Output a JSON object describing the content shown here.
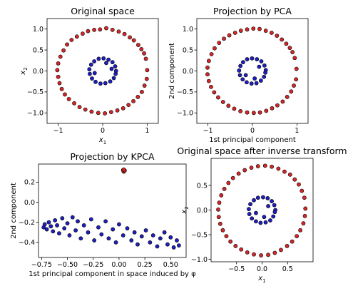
{
  "colors": {
    "outer": "#d62728",
    "inner": "#1f1fbf",
    "edge": "#000000"
  },
  "chart_data": [
    {
      "type": "scatter",
      "title": "Original space",
      "xlabel": "x1",
      "ylabel": "x2",
      "xlim": [
        -1.25,
        1.25
      ],
      "ylim": [
        -1.25,
        1.25
      ],
      "xticks": [
        -1,
        0,
        1
      ],
      "xtick_labels": [
        "−1",
        "0",
        "1"
      ],
      "yticks": [
        -1.0,
        -0.5,
        0.0,
        0.5,
        1.0
      ],
      "ytick_labels": [
        "−1.0",
        "−0.5",
        "0.0",
        "0.5",
        "1.0"
      ],
      "series": [
        {
          "color": "outer",
          "values": [
            [
              1.0,
              0.02
            ],
            [
              0.97,
              0.29
            ],
            [
              0.93,
              0.42
            ],
            [
              0.87,
              0.52
            ],
            [
              0.8,
              0.62
            ],
            [
              0.7,
              0.73
            ],
            [
              0.61,
              0.8
            ],
            [
              0.49,
              0.88
            ],
            [
              0.36,
              0.94
            ],
            [
              0.22,
              0.98
            ],
            [
              0.08,
              1.02
            ],
            [
              -0.06,
              0.99
            ],
            [
              -0.19,
              0.98
            ],
            [
              -0.33,
              0.95
            ],
            [
              -0.45,
              0.89
            ],
            [
              -0.58,
              0.82
            ],
            [
              -0.7,
              0.74
            ],
            [
              -0.8,
              0.63
            ],
            [
              -0.88,
              0.49
            ],
            [
              -0.95,
              0.34
            ],
            [
              -1.0,
              0.18
            ],
            [
              -1.02,
              0.02
            ],
            [
              -1.0,
              -0.14
            ],
            [
              -0.97,
              -0.29
            ],
            [
              -0.92,
              -0.43
            ],
            [
              -0.85,
              -0.56
            ],
            [
              -0.76,
              -0.67
            ],
            [
              -0.64,
              -0.77
            ],
            [
              -0.52,
              -0.86
            ],
            [
              -0.39,
              -0.92
            ],
            [
              -0.25,
              -0.97
            ],
            [
              -0.1,
              -1.0
            ],
            [
              0.05,
              -1.01
            ],
            [
              0.19,
              -0.98
            ],
            [
              0.33,
              -0.94
            ],
            [
              0.46,
              -0.89
            ],
            [
              0.58,
              -0.81
            ],
            [
              0.69,
              -0.72
            ],
            [
              0.79,
              -0.62
            ],
            [
              0.88,
              -0.5
            ],
            [
              0.94,
              -0.35
            ],
            [
              0.99,
              -0.19
            ]
          ]
        },
        {
          "color": "inner",
          "values": [
            [
              0.3,
              0.0
            ],
            [
              0.28,
              0.11
            ],
            [
              0.22,
              0.21
            ],
            [
              0.13,
              0.27
            ],
            [
              0.02,
              0.3
            ],
            [
              -0.09,
              0.29
            ],
            [
              -0.19,
              0.23
            ],
            [
              -0.26,
              0.15
            ],
            [
              -0.3,
              0.04
            ],
            [
              -0.29,
              -0.07
            ],
            [
              -0.24,
              -0.18
            ],
            [
              -0.16,
              -0.26
            ],
            [
              -0.05,
              -0.3
            ],
            [
              0.06,
              -0.29
            ],
            [
              0.17,
              -0.25
            ],
            [
              0.25,
              -0.17
            ],
            [
              0.29,
              -0.07
            ],
            [
              0.2,
              0.05
            ],
            [
              -0.18,
              -0.05
            ],
            [
              0.08,
              0.19
            ]
          ]
        }
      ]
    },
    {
      "type": "scatter",
      "title": "Projection by PCA",
      "xlabel": "1st principal component",
      "ylabel": "2nd component",
      "xlim": [
        -1.25,
        1.25
      ],
      "ylim": [
        -1.25,
        1.25
      ],
      "xticks": [
        -1,
        0,
        1
      ],
      "xtick_labels": [
        "−1",
        "0",
        "1"
      ],
      "yticks": [
        -1.0,
        -0.5,
        0.0,
        0.5,
        1.0
      ],
      "ytick_labels": [
        "−1.0",
        "−0.5",
        "0.0",
        "0.5",
        "1.0"
      ],
      "series": [
        {
          "color": "outer",
          "values": [
            [
              0.99,
              0.05
            ],
            [
              0.95,
              0.31
            ],
            [
              0.9,
              0.45
            ],
            [
              0.84,
              0.55
            ],
            [
              0.76,
              0.65
            ],
            [
              0.66,
              0.75
            ],
            [
              0.55,
              0.84
            ],
            [
              0.43,
              0.91
            ],
            [
              0.3,
              0.96
            ],
            [
              0.16,
              1.0
            ],
            [
              0.02,
              1.01
            ],
            [
              -0.12,
              0.99
            ],
            [
              -0.26,
              0.96
            ],
            [
              -0.39,
              0.91
            ],
            [
              -0.52,
              0.85
            ],
            [
              -0.64,
              0.77
            ],
            [
              -0.75,
              0.67
            ],
            [
              -0.85,
              0.54
            ],
            [
              -0.92,
              0.4
            ],
            [
              -0.98,
              0.24
            ],
            [
              -1.01,
              0.08
            ],
            [
              -1.01,
              -0.08
            ],
            [
              -0.98,
              -0.24
            ],
            [
              -0.93,
              -0.38
            ],
            [
              -0.86,
              -0.51
            ],
            [
              -0.77,
              -0.63
            ],
            [
              -0.66,
              -0.74
            ],
            [
              -0.54,
              -0.83
            ],
            [
              -0.41,
              -0.9
            ],
            [
              -0.27,
              -0.96
            ],
            [
              -0.12,
              -0.99
            ],
            [
              0.03,
              -1.0
            ],
            [
              0.17,
              -0.99
            ],
            [
              0.31,
              -0.95
            ],
            [
              0.44,
              -0.89
            ],
            [
              0.56,
              -0.82
            ],
            [
              0.68,
              -0.73
            ],
            [
              0.78,
              -0.62
            ],
            [
              0.87,
              -0.49
            ],
            [
              0.93,
              -0.35
            ],
            [
              0.98,
              -0.2
            ]
          ]
        },
        {
          "color": "inner",
          "values": [
            [
              0.3,
              0.02
            ],
            [
              0.27,
              0.13
            ],
            [
              0.2,
              0.23
            ],
            [
              0.1,
              0.28
            ],
            [
              -0.01,
              0.3
            ],
            [
              -0.12,
              0.28
            ],
            [
              -0.21,
              0.21
            ],
            [
              -0.27,
              0.12
            ],
            [
              -0.3,
              0.01
            ],
            [
              -0.28,
              -0.1
            ],
            [
              -0.22,
              -0.2
            ],
            [
              -0.13,
              -0.27
            ],
            [
              -0.02,
              -0.3
            ],
            [
              0.09,
              -0.29
            ],
            [
              0.19,
              -0.23
            ],
            [
              0.26,
              -0.14
            ],
            [
              0.29,
              -0.04
            ],
            [
              0.15,
              0.1
            ],
            [
              -0.15,
              -0.1
            ],
            [
              0.05,
              -0.18
            ]
          ]
        }
      ]
    },
    {
      "type": "scatter",
      "title": "Projection by KPCA",
      "xlabel": "1st principal component in space induced by φ",
      "ylabel": "2nd component",
      "xlim": [
        -0.78,
        0.65
      ],
      "ylim": [
        -0.55,
        0.38
      ],
      "xticks": [
        -0.75,
        -0.5,
        -0.25,
        0.0,
        0.25,
        0.5
      ],
      "xtick_labels": [
        "−0.75",
        "−0.50",
        "−0.25",
        "0.00",
        "0.25",
        "0.50"
      ],
      "yticks": [
        -0.4,
        -0.2,
        0.0,
        0.2
      ],
      "ytick_labels": [
        "−0.4",
        "−0.2",
        "0.0",
        "0.2"
      ],
      "series": [
        {
          "color": "outer",
          "values": [
            [
              0.04,
              0.32
            ],
            [
              0.05,
              0.31
            ],
            [
              0.05,
              0.32
            ],
            [
              0.045,
              0.305
            ],
            [
              0.055,
              0.315
            ],
            [
              0.045,
              0.325
            ]
          ]
        },
        {
          "color": "inner",
          "values": [
            [
              -0.73,
              -0.25
            ],
            [
              -0.72,
              -0.22
            ],
            [
              -0.7,
              -0.27
            ],
            [
              -0.68,
              -0.2
            ],
            [
              -0.66,
              -0.24
            ],
            [
              -0.64,
              -0.29
            ],
            [
              -0.62,
              -0.18
            ],
            [
              -0.6,
              -0.23
            ],
            [
              -0.58,
              -0.31
            ],
            [
              -0.55,
              -0.16
            ],
            [
              -0.53,
              -0.26
            ],
            [
              -0.5,
              -0.21
            ],
            [
              -0.48,
              -0.33
            ],
            [
              -0.45,
              -0.15
            ],
            [
              -0.42,
              -0.28
            ],
            [
              -0.4,
              -0.19
            ],
            [
              -0.37,
              -0.36
            ],
            [
              -0.34,
              -0.23
            ],
            [
              -0.3,
              -0.3
            ],
            [
              -0.27,
              -0.17
            ],
            [
              -0.24,
              -0.38
            ],
            [
              -0.2,
              -0.25
            ],
            [
              -0.17,
              -0.32
            ],
            [
              -0.13,
              -0.19
            ],
            [
              -0.1,
              -0.36
            ],
            [
              -0.06,
              -0.27
            ],
            [
              -0.03,
              -0.4
            ],
            [
              0.0,
              -0.22
            ],
            [
              0.04,
              -0.33
            ],
            [
              0.08,
              -0.26
            ],
            [
              0.12,
              -0.38
            ],
            [
              0.15,
              -0.3
            ],
            [
              0.18,
              -0.42
            ],
            [
              0.22,
              -0.34
            ],
            [
              0.26,
              -0.28
            ],
            [
              0.3,
              -0.4
            ],
            [
              0.33,
              -0.33
            ],
            [
              0.37,
              -0.44
            ],
            [
              0.4,
              -0.36
            ],
            [
              0.44,
              -0.3
            ],
            [
              0.47,
              -0.42
            ],
            [
              0.5,
              -0.35
            ],
            [
              0.53,
              -0.45
            ],
            [
              0.56,
              -0.38
            ],
            [
              0.58,
              -0.43
            ]
          ]
        }
      ]
    },
    {
      "type": "scatter",
      "title": "Original space after inverse transform",
      "xlabel": "x1",
      "ylabel": "x2",
      "xlim": [
        -1.0,
        1.0
      ],
      "ylim": [
        -1.05,
        1.05
      ],
      "xticks": [
        -0.5,
        0.0,
        0.5
      ],
      "xtick_labels": [
        "−0.5",
        "0.0",
        "0.5"
      ],
      "yticks": [
        -1.0,
        -0.5,
        0.0,
        0.5
      ],
      "ytick_labels": [
        "−1.0",
        "−0.5",
        "0.0",
        "0.5"
      ],
      "series": [
        {
          "color": "outer",
          "values": [
            [
              0.85,
              0.03
            ],
            [
              0.83,
              0.25
            ],
            [
              0.78,
              0.39
            ],
            [
              0.72,
              0.52
            ],
            [
              0.64,
              0.62
            ],
            [
              0.55,
              0.72
            ],
            [
              0.44,
              0.78
            ],
            [
              0.32,
              0.84
            ],
            [
              0.19,
              0.88
            ],
            [
              0.06,
              0.9
            ],
            [
              -0.08,
              0.89
            ],
            [
              -0.21,
              0.86
            ],
            [
              -0.34,
              0.81
            ],
            [
              -0.46,
              0.74
            ],
            [
              -0.57,
              0.65
            ],
            [
              -0.66,
              0.55
            ],
            [
              -0.74,
              0.43
            ],
            [
              -0.8,
              0.3
            ],
            [
              -0.84,
              0.15
            ],
            [
              -0.86,
              0.01
            ],
            [
              -0.85,
              -0.14
            ],
            [
              -0.82,
              -0.28
            ],
            [
              -0.77,
              -0.41
            ],
            [
              -0.7,
              -0.53
            ],
            [
              -0.62,
              -0.64
            ],
            [
              -0.52,
              -0.73
            ],
            [
              -0.41,
              -0.8
            ],
            [
              -0.29,
              -0.86
            ],
            [
              -0.16,
              -0.9
            ],
            [
              -0.02,
              -0.92
            ],
            [
              0.12,
              -0.91
            ],
            [
              0.25,
              -0.87
            ],
            [
              0.37,
              -0.81
            ],
            [
              0.49,
              -0.73
            ],
            [
              0.59,
              -0.64
            ],
            [
              0.68,
              -0.53
            ],
            [
              0.75,
              -0.41
            ],
            [
              0.81,
              -0.27
            ],
            [
              0.84,
              -0.12
            ]
          ]
        },
        {
          "color": "inner",
          "values": [
            [
              0.26,
              0.0
            ],
            [
              0.24,
              0.1
            ],
            [
              0.19,
              0.18
            ],
            [
              0.11,
              0.24
            ],
            [
              0.02,
              0.26
            ],
            [
              -0.08,
              0.25
            ],
            [
              -0.16,
              0.2
            ],
            [
              -0.23,
              0.12
            ],
            [
              -0.26,
              0.02
            ],
            [
              -0.25,
              -0.08
            ],
            [
              -0.2,
              -0.17
            ],
            [
              -0.12,
              -0.23
            ],
            [
              -0.03,
              -0.26
            ],
            [
              0.07,
              -0.25
            ],
            [
              0.16,
              -0.21
            ],
            [
              0.22,
              -0.13
            ],
            [
              0.25,
              -0.04
            ],
            [
              0.12,
              0.08
            ],
            [
              -0.12,
              -0.06
            ],
            [
              0.04,
              -0.14
            ]
          ]
        }
      ]
    }
  ]
}
